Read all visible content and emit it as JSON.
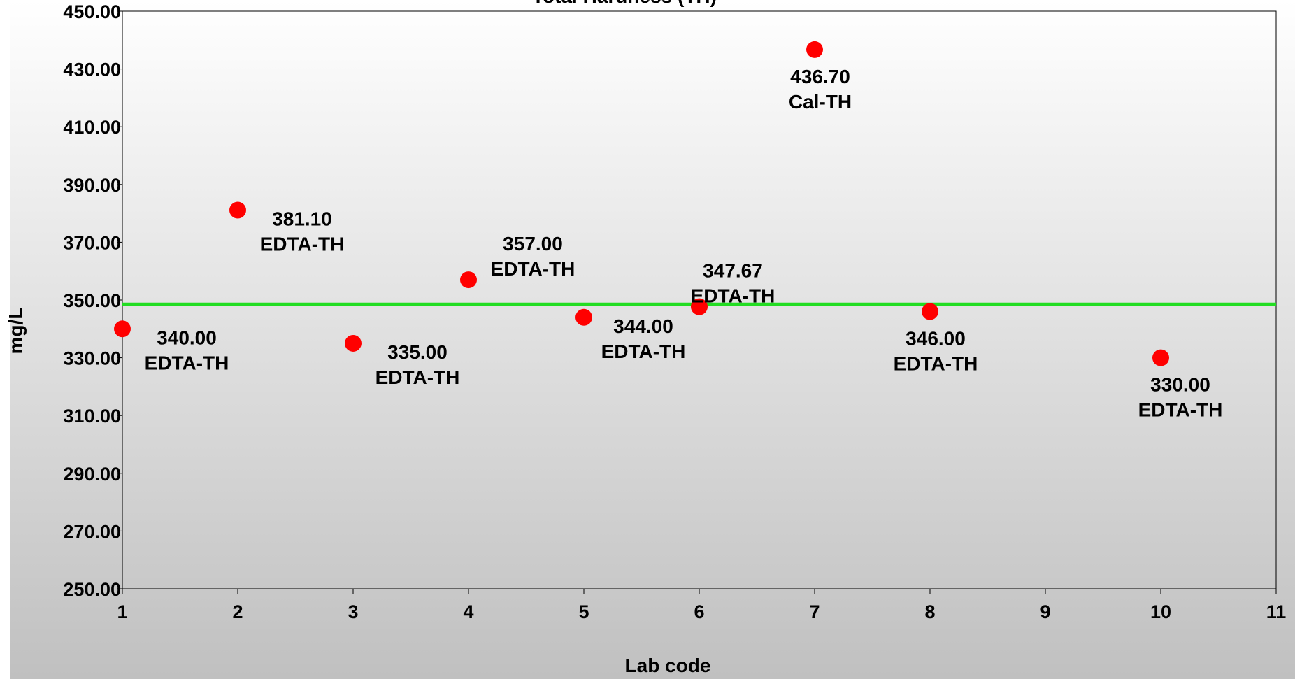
{
  "chart_data": {
    "type": "scatter",
    "title": "Total Hardness  (TH)",
    "xlabel": "Lab code",
    "ylabel": "mg/L",
    "xlim": [
      1,
      11
    ],
    "ylim": [
      250,
      450
    ],
    "x_ticks": [
      "1",
      "2",
      "3",
      "4",
      "5",
      "6",
      "7",
      "8",
      "9",
      "10",
      "11"
    ],
    "y_ticks": [
      "250.00",
      "270.00",
      "290.00",
      "310.00",
      "330.00",
      "350.00",
      "370.00",
      "390.00",
      "410.00",
      "430.00",
      "450.00"
    ],
    "reference_line": {
      "y": 348.5,
      "color": "#22dd22"
    },
    "marker_color": "#ff0000",
    "points": [
      {
        "x": 1,
        "y": 340.0,
        "value_label": "340.00",
        "method": "EDTA-TH"
      },
      {
        "x": 2,
        "y": 381.1,
        "value_label": "381.10",
        "method": "EDTA-TH"
      },
      {
        "x": 3,
        "y": 335.0,
        "value_label": "335.00",
        "method": "EDTA-TH"
      },
      {
        "x": 4,
        "y": 357.0,
        "value_label": "357.00",
        "method": "EDTA-TH"
      },
      {
        "x": 5,
        "y": 344.0,
        "value_label": "344.00",
        "method": "EDTA-TH"
      },
      {
        "x": 6,
        "y": 347.67,
        "value_label": "347.67",
        "method": "EDTA-TH"
      },
      {
        "x": 7,
        "y": 436.7,
        "value_label": "436.70",
        "method": "Cal-TH"
      },
      {
        "x": 8,
        "y": 346.0,
        "value_label": "346.00",
        "method": "EDTA-TH"
      },
      {
        "x": 10,
        "y": 330.0,
        "value_label": "330.00",
        "method": "EDTA-TH"
      }
    ],
    "grid": false,
    "background": {
      "top": "#ffffff",
      "bottom": "#c0c0c0"
    }
  }
}
